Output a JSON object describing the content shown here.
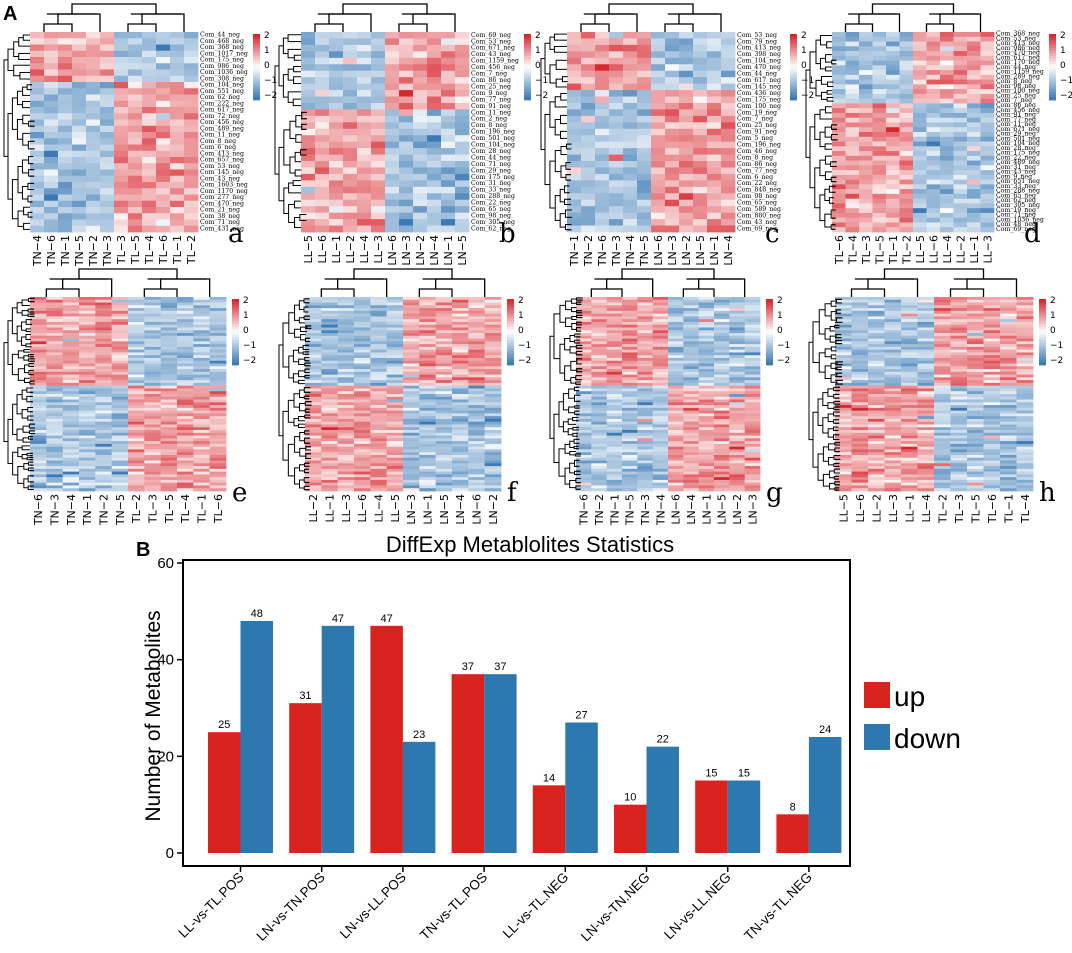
{
  "figure": {
    "panel_a_label": "A",
    "panel_b_label": "B"
  },
  "colors": {
    "heat_high": "#d7282f",
    "heat_mid": "#ffffff",
    "heat_low": "#3b7ab5",
    "up": "#d9231f",
    "down": "#2e78b0"
  },
  "heatmaps": [
    {
      "id": "a",
      "legend_ticks": [
        "2",
        "1",
        "0",
        "−1",
        "−2"
      ],
      "columns": [
        "TN−4",
        "TN−6",
        "TN−1",
        "TN−5",
        "TN−2",
        "TN−3",
        "TL−3",
        "TL−5",
        "TL−4",
        "TL−6",
        "TL−1",
        "TL−2"
      ],
      "rows": [
        "Com_44_neg",
        "Com_468_neg",
        "Com_368_neg",
        "Com_1017_neg",
        "Com_175_neg",
        "Com_986_neg",
        "Com_1036_neg",
        "Com_308_neg",
        "Com_104_neg",
        "Com_551_neg",
        "Com_62_neg",
        "Com_222_neg",
        "Com_617_neg",
        "Com_72_neg",
        "Com_456_neg",
        "Com_489_neg",
        "Com_11_neg",
        "Com_8_neg",
        "Com_6_neg",
        "Com_413_neg",
        "Com_657_neg",
        "Com_53_neg",
        "Com_145_neg",
        "Com_43_neg",
        "Com_1603_neg",
        "Com_1170_neg",
        "Com_277_neg",
        "Com_470_neg",
        "Com_21_neg",
        "Com_38_neg",
        "Com_71_neg",
        "Com_431_neg"
      ],
      "split": 8
    },
    {
      "id": "b",
      "legend_ticks": [
        "2",
        "1",
        "0",
        "−1",
        "−2"
      ],
      "columns": [
        "LL−5",
        "LL−6",
        "LL−1",
        "LL−2",
        "LL−4",
        "LL−3",
        "LN−6",
        "LN−3",
        "LN−2",
        "LN−4",
        "LN−1",
        "LN−5"
      ],
      "rows": [
        "Com_69_neg",
        "Com_53_neg",
        "Com_671_neg",
        "Com_43_neg",
        "Com_1159_neg",
        "Com_456_neg",
        "Com_7_neg",
        "Com_86_neg",
        "Com_25_neg",
        "Com_9_neg",
        "Com_77_neg",
        "Com_91_neg",
        "Com_11_neg",
        "Com_2_neg",
        "Com_8_neg",
        "Com_196_neg",
        "Com_501_neg",
        "Com_104_neg",
        "Com_28_neg",
        "Com_44_neg",
        "Com_71_neg",
        "Com_29_neg",
        "Com_175_neg",
        "Com_31_neg",
        "Com_33_neg",
        "Com_288_neg",
        "Com_22_neg",
        "Com_65_neg",
        "Com_98_neg",
        "Com_305_neg",
        "Com_62_neg"
      ],
      "split": 12
    },
    {
      "id": "c",
      "legend_ticks": [
        "2",
        "1",
        "0",
        "−1",
        "−2"
      ],
      "columns": [
        "TN−1",
        "TN−2",
        "TN−6",
        "TN−3",
        "TN−4",
        "TN−5",
        "LN−6",
        "LN−3",
        "LN−2",
        "LN−5",
        "LN−1",
        "LN−4"
      ],
      "rows": [
        "Com_53_neg",
        "Com_79_neg",
        "Com_413_neg",
        "Com_398_neg",
        "Com_104_neg",
        "Com_470_neg",
        "Com_44_neg",
        "Com_617_neg",
        "Com_145_neg",
        "Com_436_neg",
        "Com_175_neg",
        "Com_100_neg",
        "Com_19_neg",
        "Com_7_neg",
        "Com_25_neg",
        "Com_91_neg",
        "Com_5_neg",
        "Com_196_neg",
        "Com_46_neg",
        "Com_8_neg",
        "Com_86_neg",
        "Com_77_neg",
        "Com_6_neg",
        "Com_22_neg",
        "Com_848_neg",
        "Com_98_neg",
        "Com_65_neg",
        "Com_589_neg",
        "Com_880_neg",
        "Com_43_neg",
        "Com_69_neg"
      ],
      "split": 9
    },
    {
      "id": "d",
      "legend_ticks": [
        "2",
        "1",
        "0",
        "−1",
        "−2"
      ],
      "columns": [
        "TL−6",
        "TL−4",
        "TL−3",
        "TL−5",
        "TL−1",
        "TL−2",
        "LL−5",
        "LL−6",
        "LL−4",
        "LL−2",
        "LL−1",
        "LL−3"
      ],
      "rows": [
        "Com_368_neg",
        "Com_53_neg",
        "Com_413_neg",
        "Com_986_neg",
        "Com_470_neg",
        "Com_617_neg",
        "Com_170_neg",
        "Com_44_neg",
        "Com_1159_neg",
        "Com_289_neg",
        "Com_8_neg",
        "Com_98_neg",
        "Com_100_neg",
        "Com_25_neg",
        "Com_7_neg",
        "Com_86_neg",
        "Com_456_neg",
        "Com_91_neg",
        "Com_77_neg",
        "Com_11_neg",
        "Com_671_neg",
        "Com_29_neg",
        "Com_501_neg",
        "Com_104_neg",
        "Com_28_neg",
        "Com_175_neg",
        "Com_22_neg",
        "Com_489_neg",
        "Com_31_neg",
        "Com_43_neg",
        "Com_9_neg",
        "Com_651_neg",
        "Com_33_neg",
        "Com_288_neg",
        "Com_65_neg",
        "Com_62_neg",
        "Com_305_neg",
        "Com_19_neg",
        "Com_71_neg",
        "Com_1036_neg",
        "Com_48_neg",
        "Com_69_neg"
      ],
      "split": 11
    },
    {
      "id": "e",
      "legend_ticks": [
        "2",
        "1",
        "0",
        "−1",
        "−2"
      ],
      "columns": [
        "TN−6",
        "TN−3",
        "TN−4",
        "TN−1",
        "TN−2",
        "TN−5",
        "TL−2",
        "TL−3",
        "TL−5",
        "TL−4",
        "TL−1",
        "TL−6"
      ],
      "rows": [],
      "split": 6
    },
    {
      "id": "f",
      "legend_ticks": [
        "2",
        "1",
        "0",
        "−1",
        "−2"
      ],
      "columns": [
        "LL−2",
        "LL−1",
        "LL−3",
        "LL−6",
        "LL−4",
        "LL−5",
        "LN−3",
        "LN−1",
        "LN−5",
        "LN−4",
        "LN−6",
        "LN−2"
      ],
      "rows": [],
      "split": 6
    },
    {
      "id": "g",
      "legend_ticks": [
        "2",
        "1",
        "0",
        "−1",
        "−2"
      ],
      "columns": [
        "TN−6",
        "TN−2",
        "TN−1",
        "TN−5",
        "TN−3",
        "TN−4",
        "LN−6",
        "LN−4",
        "LN−1",
        "LN−5",
        "LN−2",
        "LN−3"
      ],
      "rows": [],
      "split": 6
    },
    {
      "id": "h",
      "legend_ticks": [
        "2",
        "1",
        "0",
        "−1",
        "−2"
      ],
      "columns": [
        "LL−5",
        "LL−6",
        "LL−2",
        "LL−3",
        "LL−1",
        "LL−4",
        "TL−2",
        "TL−3",
        "TL−5",
        "TL−6",
        "TL−1",
        "TL−4"
      ],
      "rows": [],
      "split": 5
    }
  ],
  "chart_data": {
    "type": "bar",
    "title": "DiffExp Metablolites Statistics",
    "xlabel": "",
    "ylabel": "Number of Metabolites",
    "ylim": [
      0,
      60
    ],
    "yticks": [
      0,
      20,
      40,
      60
    ],
    "categories": [
      "LL-vs-TL.POS",
      "LN-vs-TN.POS",
      "LN-vs-LL.POS",
      "TN-vs-TL.POS",
      "LL-vs-TL.NEG",
      "LN-vs-TN.NEG",
      "LN-vs-LL.NEG",
      "TN-vs-TL.NEG"
    ],
    "series": [
      {
        "name": "up",
        "values": [
          25,
          31,
          47,
          37,
          14,
          10,
          15,
          8
        ]
      },
      {
        "name": "down",
        "values": [
          48,
          47,
          23,
          37,
          27,
          22,
          15,
          24
        ]
      }
    ],
    "legend": "right"
  }
}
